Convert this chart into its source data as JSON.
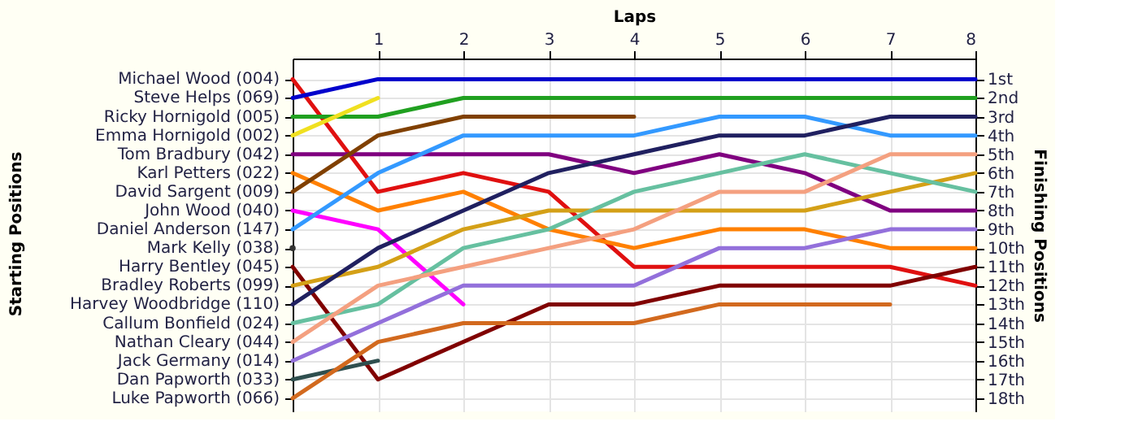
{
  "chart_data": {
    "type": "line",
    "xlabel": "Laps",
    "y2label": "Finishing Positions",
    "grid": true,
    "x": [
      0,
      1,
      2,
      3,
      4,
      5,
      6,
      7,
      8
    ],
    "annotations": [
      "Starting Positions"
    ],
    "xlim": [
      0,
      8
    ],
    "xticks": [
      1,
      2,
      3,
      4,
      5,
      6,
      7,
      8
    ],
    "y2lim": [
      18.7,
      -0.1
    ],
    "y2ticks": [
      {
        "value": 1,
        "label": "1st"
      },
      {
        "value": 2,
        "label": "2nd"
      },
      {
        "value": 3,
        "label": "3rd"
      },
      {
        "value": 4,
        "label": "4th"
      },
      {
        "value": 5,
        "label": "5th"
      },
      {
        "value": 6,
        "label": "6th"
      },
      {
        "value": 7,
        "label": "7th"
      },
      {
        "value": 8,
        "label": "8th"
      },
      {
        "value": 9,
        "label": "9th"
      },
      {
        "value": 10,
        "label": "10th"
      },
      {
        "value": 11,
        "label": "11th"
      },
      {
        "value": 12,
        "label": "12th"
      },
      {
        "value": 13,
        "label": "13th"
      },
      {
        "value": 14,
        "label": "14th"
      },
      {
        "value": 15,
        "label": "15th"
      },
      {
        "value": 16,
        "label": "16th"
      },
      {
        "value": 17,
        "label": "17th"
      },
      {
        "value": 18,
        "label": "18th"
      }
    ],
    "series": [
      {
        "name": "Michael Wood (004)",
        "axis": "y2",
        "color": "#e01010",
        "values": [
          1,
          7,
          6,
          7,
          11,
          11,
          11,
          11,
          12
        ]
      },
      {
        "name": "Steve Helps (069)",
        "axis": "y2",
        "color": "#0000cc",
        "values": [
          2,
          1,
          1,
          1,
          1,
          1,
          1,
          1,
          1
        ]
      },
      {
        "name": "Ricky Hornigold (005)",
        "axis": "y2",
        "color": "#20a020",
        "values": [
          3,
          3,
          2,
          2,
          2,
          2,
          2,
          2,
          2
        ]
      },
      {
        "name": "Emma Hornigold (002)",
        "axis": "y2",
        "color": "#f0e020",
        "values": [
          4,
          2,
          null,
          null,
          null,
          null,
          null,
          null,
          null
        ]
      },
      {
        "name": "Tom Bradbury (042)",
        "axis": "y2",
        "color": "#800080",
        "values": [
          5,
          5,
          5,
          5,
          6,
          5,
          6,
          8,
          8
        ]
      },
      {
        "name": "Karl Petters (022)",
        "axis": "y2",
        "color": "#ff8000",
        "values": [
          6,
          8,
          7,
          9,
          10,
          9,
          9,
          10,
          10
        ]
      },
      {
        "name": "David Sargent (009)",
        "axis": "y2",
        "color": "#804000",
        "values": [
          7,
          4,
          3,
          3,
          3,
          null,
          null,
          null,
          null
        ]
      },
      {
        "name": "John Wood (040)",
        "axis": "y2",
        "color": "#ff00ff",
        "values": [
          8,
          9,
          13,
          null,
          null,
          null,
          null,
          null,
          null
        ]
      },
      {
        "name": "Daniel Anderson (147)",
        "axis": "y2",
        "color": "#3399ff",
        "values": [
          9,
          6,
          4,
          4,
          4,
          3,
          3,
          4,
          4
        ]
      },
      {
        "name": "Mark Kelly (038)",
        "axis": "y2",
        "color": "#333333",
        "marker": "circle",
        "values": [
          10,
          null,
          null,
          null,
          null,
          null,
          null,
          null,
          null
        ]
      },
      {
        "name": "Harry Bentley (045)",
        "axis": "y2",
        "color": "#800000",
        "values": [
          11,
          17,
          15,
          13,
          13,
          12,
          12,
          12,
          11
        ]
      },
      {
        "name": "Bradley Roberts (099)",
        "axis": "y2",
        "color": "#d4a017",
        "values": [
          12,
          11,
          9,
          8,
          8,
          8,
          8,
          7,
          6
        ]
      },
      {
        "name": "Harvey Woodbridge (110)",
        "axis": "y2",
        "color": "#202060",
        "values": [
          13,
          10,
          8,
          6,
          5,
          4,
          4,
          3,
          3
        ]
      },
      {
        "name": "Callum Bonfield (024)",
        "axis": "y2",
        "color": "#66c0a0",
        "values": [
          14,
          13,
          10,
          9,
          7,
          6,
          5,
          6,
          7
        ]
      },
      {
        "name": "Nathan Cleary (044)",
        "axis": "y2",
        "color": "#f4a080",
        "values": [
          15,
          12,
          11,
          10,
          9,
          7,
          7,
          5,
          5
        ]
      },
      {
        "name": "Jack Germany (014)",
        "axis": "y2",
        "color": "#9370db",
        "values": [
          16,
          14,
          12,
          12,
          12,
          10,
          10,
          9,
          9
        ]
      },
      {
        "name": "Dan Papworth (033)",
        "axis": "y2",
        "color": "#2f4f4f",
        "values": [
          17,
          16,
          null,
          null,
          null,
          null,
          null,
          null,
          null
        ]
      },
      {
        "name": "Luke Papworth (066)",
        "axis": "y2",
        "color": "#d2691e",
        "values": [
          18,
          15,
          14,
          14,
          14,
          13,
          13,
          13,
          null
        ]
      }
    ]
  }
}
